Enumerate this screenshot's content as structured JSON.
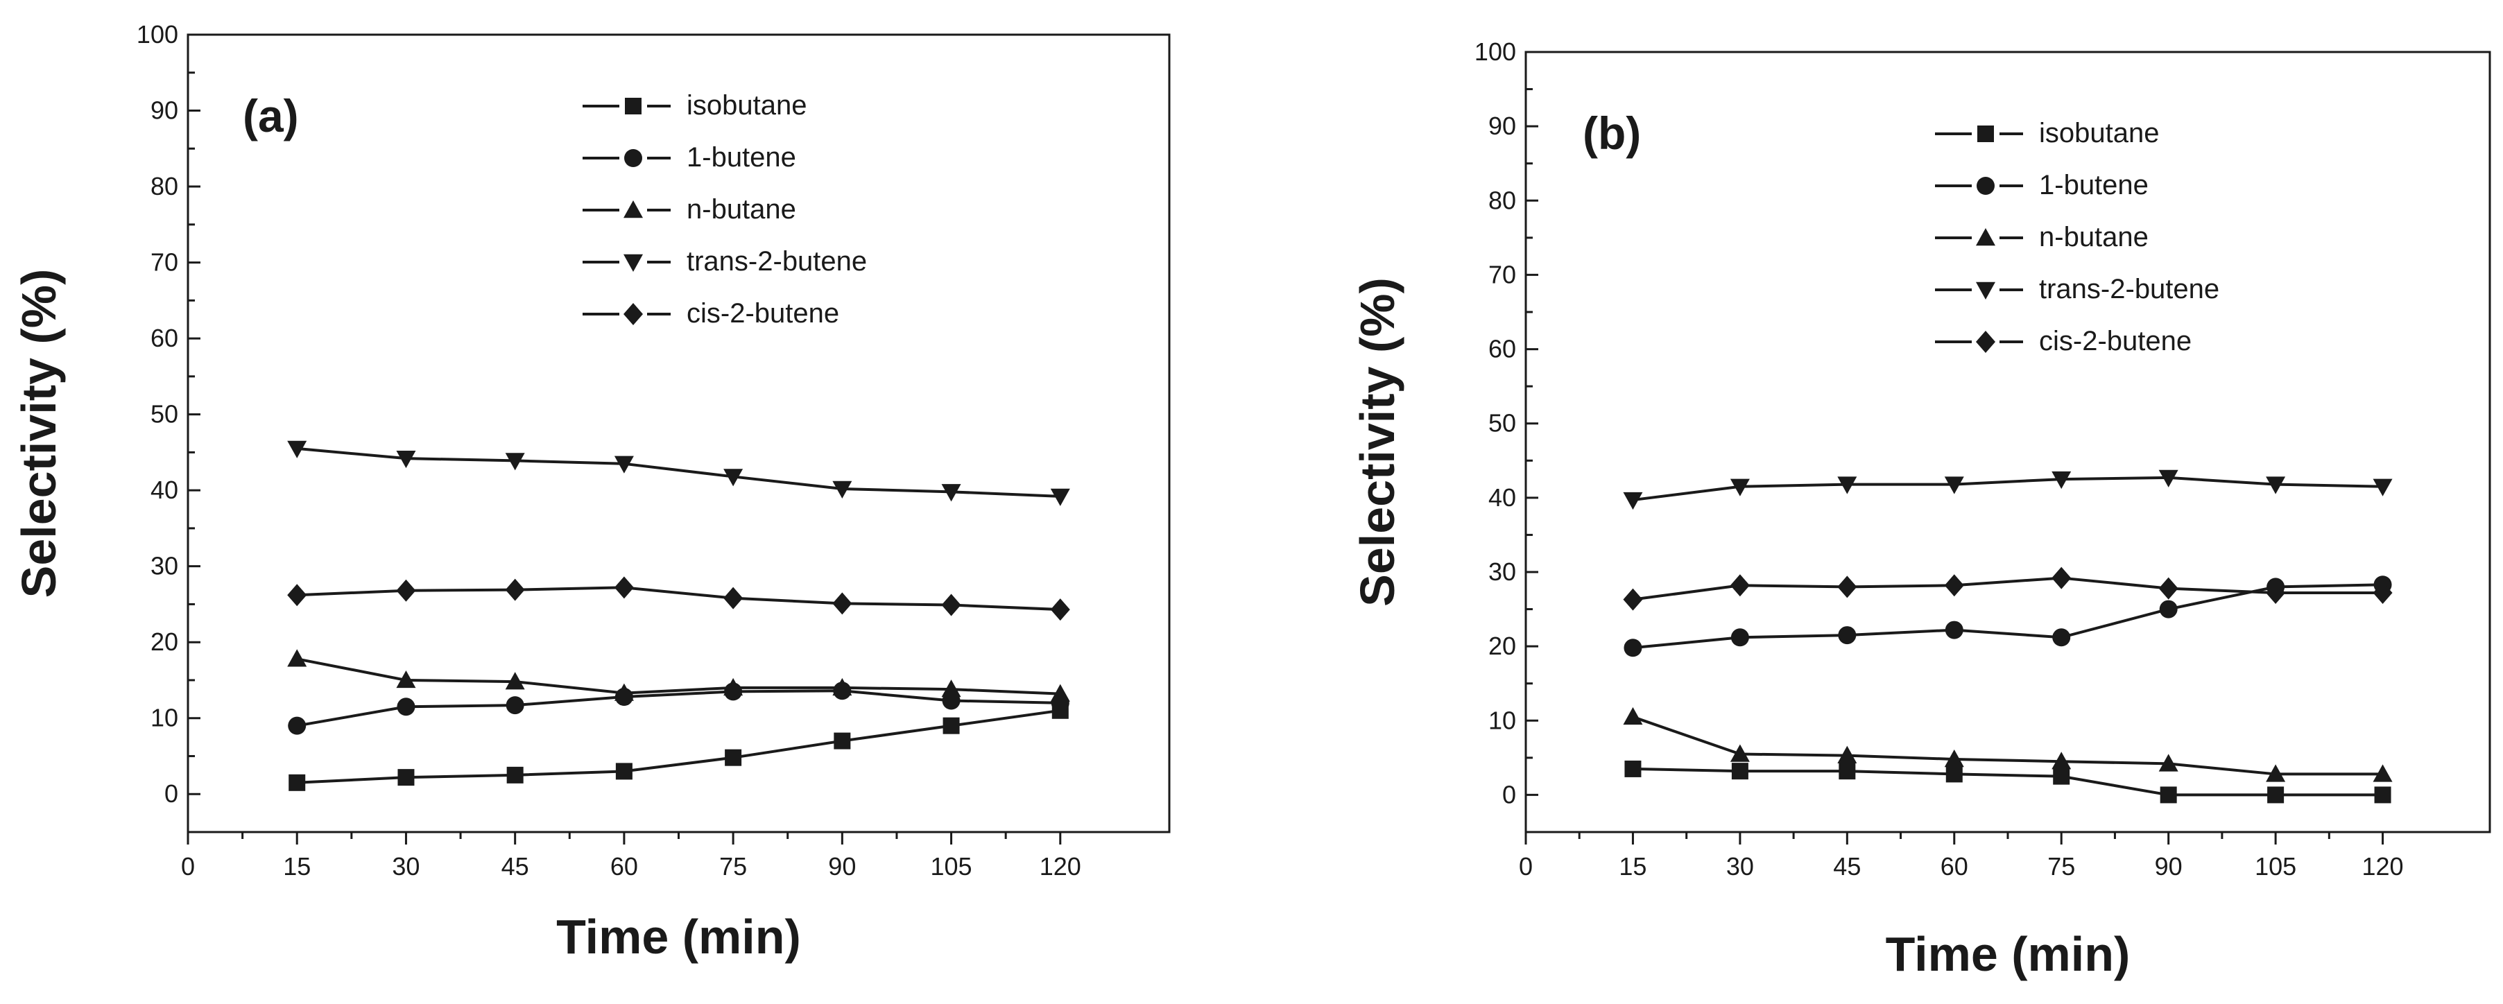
{
  "chart_data": [
    {
      "type": "line",
      "panel_label": "(a)",
      "xlabel": "Time (min)",
      "ylabel": "Selectivity (%)",
      "xlim": [
        0,
        135
      ],
      "ylim": [
        -5,
        100
      ],
      "x_ticks": [
        0,
        15,
        30,
        45,
        60,
        75,
        90,
        105,
        120
      ],
      "y_ticks": [
        0,
        10,
        20,
        30,
        40,
        50,
        60,
        70,
        80,
        90,
        100
      ],
      "grid": false,
      "legend_position": "top-right",
      "x": [
        15,
        30,
        45,
        60,
        75,
        90,
        105,
        120
      ],
      "series": [
        {
          "name": "isobutane",
          "marker": "square",
          "values": [
            1.5,
            2.2,
            2.5,
            3.0,
            4.8,
            7.0,
            9.0,
            11.0
          ]
        },
        {
          "name": "1-butene",
          "marker": "circle",
          "values": [
            9.0,
            11.5,
            11.7,
            12.8,
            13.5,
            13.6,
            12.3,
            12.0
          ]
        },
        {
          "name": "n-butane",
          "marker": "triangle-up",
          "values": [
            17.8,
            15.0,
            14.8,
            13.3,
            14.0,
            14.0,
            13.8,
            13.2
          ]
        },
        {
          "name": "trans-2-butene",
          "marker": "triangle-down",
          "values": [
            45.5,
            44.2,
            43.9,
            43.5,
            41.8,
            40.2,
            39.8,
            39.2
          ]
        },
        {
          "name": "cis-2-butene",
          "marker": "diamond",
          "values": [
            26.2,
            26.8,
            26.9,
            27.2,
            25.8,
            25.1,
            24.9,
            24.3
          ]
        }
      ]
    },
    {
      "type": "line",
      "panel_label": "(b)",
      "xlabel": "Time (min)",
      "ylabel": "Selectivity (%)",
      "xlim": [
        0,
        135
      ],
      "ylim": [
        -5,
        100
      ],
      "x_ticks": [
        0,
        15,
        30,
        45,
        60,
        75,
        90,
        105,
        120
      ],
      "y_ticks": [
        0,
        10,
        20,
        30,
        40,
        50,
        60,
        70,
        80,
        90,
        100
      ],
      "grid": false,
      "legend_position": "top-right",
      "x": [
        15,
        30,
        45,
        60,
        75,
        90,
        105,
        120
      ],
      "series": [
        {
          "name": "isobutane",
          "marker": "square",
          "values": [
            3.5,
            3.2,
            3.2,
            2.8,
            2.5,
            0.0,
            0.0,
            0.0
          ]
        },
        {
          "name": "1-butene",
          "marker": "circle",
          "values": [
            19.8,
            21.2,
            21.5,
            22.2,
            21.2,
            25.0,
            28.0,
            28.3
          ]
        },
        {
          "name": "n-butane",
          "marker": "triangle-up",
          "values": [
            10.5,
            5.5,
            5.3,
            4.8,
            4.5,
            4.2,
            2.8,
            2.8
          ]
        },
        {
          "name": "trans-2-butene",
          "marker": "triangle-down",
          "values": [
            39.7,
            41.5,
            41.8,
            41.8,
            42.5,
            42.7,
            41.8,
            41.5
          ]
        },
        {
          "name": "cis-2-butene",
          "marker": "diamond",
          "values": [
            26.3,
            28.2,
            28.0,
            28.2,
            29.2,
            27.8,
            27.2,
            27.2
          ]
        }
      ]
    }
  ]
}
